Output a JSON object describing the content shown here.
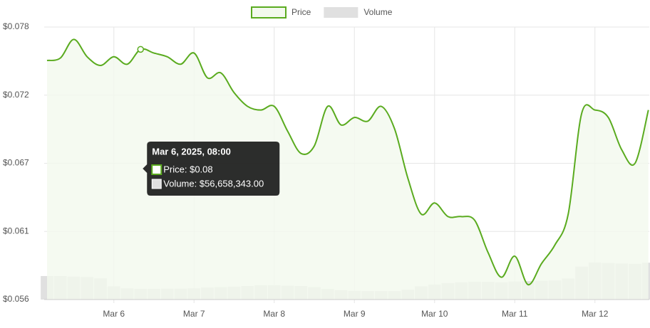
{
  "chart_data": {
    "type": "line",
    "x": [
      "Mar 5, 2025, 04:00",
      "Mar 5, 2025, 08:00",
      "Mar 5, 2025, 12:00",
      "Mar 5, 2025, 16:00",
      "Mar 5, 2025, 20:00",
      "Mar 6, 2025, 00:00",
      "Mar 6, 2025, 04:00",
      "Mar 6, 2025, 08:00",
      "Mar 6, 2025, 12:00",
      "Mar 6, 2025, 16:00",
      "Mar 6, 2025, 20:00",
      "Mar 7, 2025, 00:00",
      "Mar 7, 2025, 04:00",
      "Mar 7, 2025, 08:00",
      "Mar 7, 2025, 12:00",
      "Mar 7, 2025, 16:00",
      "Mar 7, 2025, 20:00",
      "Mar 8, 2025, 00:00",
      "Mar 8, 2025, 04:00",
      "Mar 8, 2025, 08:00",
      "Mar 8, 2025, 12:00",
      "Mar 8, 2025, 16:00",
      "Mar 8, 2025, 20:00",
      "Mar 9, 2025, 00:00",
      "Mar 9, 2025, 04:00",
      "Mar 9, 2025, 08:00",
      "Mar 9, 2025, 12:00",
      "Mar 9, 2025, 16:00",
      "Mar 9, 2025, 20:00",
      "Mar 10, 2025, 00:00",
      "Mar 10, 2025, 04:00",
      "Mar 10, 2025, 08:00",
      "Mar 10, 2025, 12:00",
      "Mar 10, 2025, 16:00",
      "Mar 10, 2025, 20:00",
      "Mar 11, 2025, 00:00",
      "Mar 11, 2025, 04:00",
      "Mar 11, 2025, 08:00",
      "Mar 11, 2025, 12:00",
      "Mar 11, 2025, 16:00",
      "Mar 11, 2025, 20:00",
      "Mar 12, 2025, 00:00",
      "Mar 12, 2025, 04:00",
      "Mar 12, 2025, 08:00",
      "Mar 12, 2025, 12:00",
      "Mar 12, 2025, 16:00"
    ],
    "series": [
      {
        "name": "Price",
        "color": "#5aab1f",
        "fill": "#f3f9ee",
        "values": [
          0.0751,
          0.0753,
          0.0768,
          0.0754,
          0.0747,
          0.0754,
          0.0748,
          0.076,
          0.0757,
          0.0754,
          0.0748,
          0.0757,
          0.0737,
          0.0741,
          0.0725,
          0.0714,
          0.0711,
          0.0714,
          0.0694,
          0.0676,
          0.0682,
          0.0714,
          0.0699,
          0.0705,
          0.0702,
          0.0714,
          0.0696,
          0.0656,
          0.0627,
          0.0636,
          0.0625,
          0.0625,
          0.0622,
          0.0596,
          0.0576,
          0.0593,
          0.057,
          0.0587,
          0.0602,
          0.0627,
          0.0708,
          0.0711,
          0.0705,
          0.0679,
          0.0668,
          0.0711
        ]
      },
      {
        "name": "Volume",
        "color": "#e0e0e0",
        "axis": "y2",
        "values": [
          125000000,
          125000000,
          122000000,
          120000000,
          113000000,
          70000000,
          60000000,
          56658343,
          57000000,
          58000000,
          58000000,
          60000000,
          64000000,
          66000000,
          68000000,
          72000000,
          76000000,
          76000000,
          74000000,
          72000000,
          66000000,
          56000000,
          50000000,
          46000000,
          45000000,
          45000000,
          45000000,
          52000000,
          70000000,
          80000000,
          88000000,
          92000000,
          95000000,
          94000000,
          92000000,
          96000000,
          98000000,
          100000000,
          102000000,
          112000000,
          175000000,
          197000000,
          195000000,
          192000000,
          190000000,
          196000000
        ]
      }
    ],
    "ylim": [
      0.0558,
      0.0778
    ],
    "yticks": [
      {
        "value": 0.0558,
        "label": "$0.056"
      },
      {
        "value": 0.0613,
        "label": "$0.061"
      },
      {
        "value": 0.0668,
        "label": "$0.067"
      },
      {
        "value": 0.0723,
        "label": "$0.072"
      },
      {
        "value": 0.0778,
        "label": "$0.078"
      }
    ],
    "y2lim": [
      0,
      1450000000
    ],
    "xticks": [
      {
        "value": "Mar 6, 2025, 00:00",
        "label": "Mar 6"
      },
      {
        "value": "Mar 7, 2025, 00:00",
        "label": "Mar 7"
      },
      {
        "value": "Mar 8, 2025, 00:00",
        "label": "Mar 8"
      },
      {
        "value": "Mar 9, 2025, 00:00",
        "label": "Mar 9"
      },
      {
        "value": "Mar 10, 2025, 00:00",
        "label": "Mar 10"
      },
      {
        "value": "Mar 11, 2025, 00:00",
        "label": "Mar 11"
      },
      {
        "value": "Mar 12, 2025, 00:00",
        "label": "Mar 12"
      }
    ],
    "grid": true,
    "legend": "top",
    "tooltip": {
      "index": 7,
      "title": "Mar 6, 2025, 08:00",
      "price_label": "Price: $0.08",
      "volume_label": "Volume: $56,658,343.00"
    }
  }
}
